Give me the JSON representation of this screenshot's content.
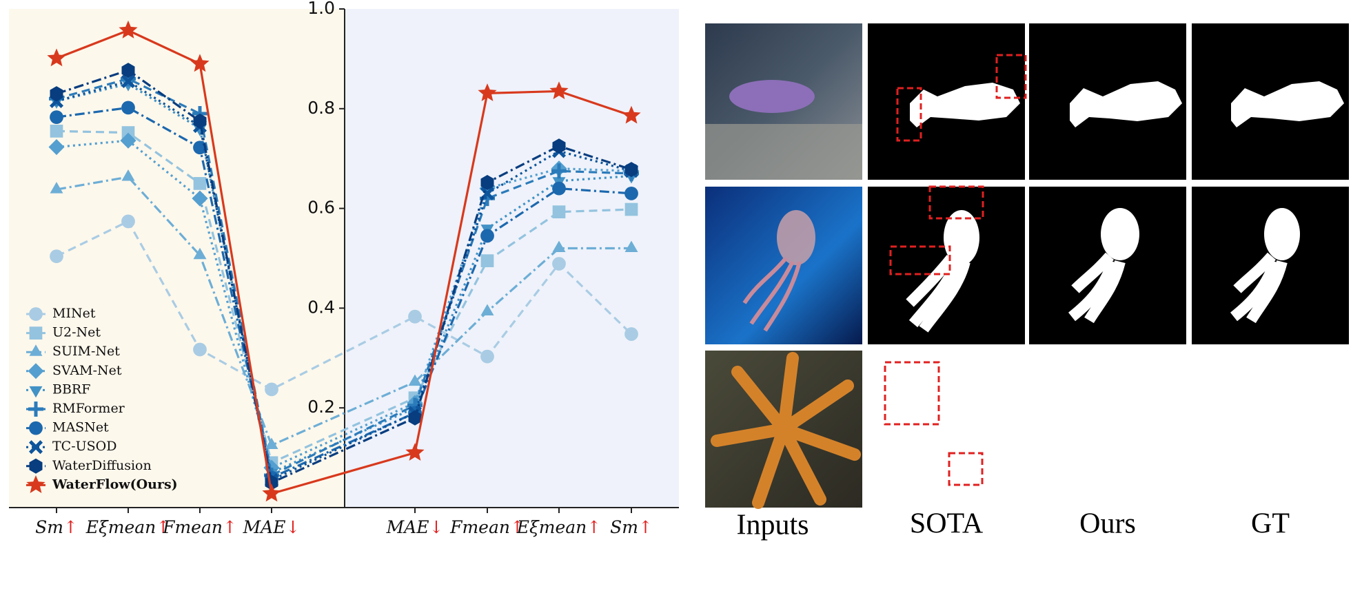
{
  "chart_data": {
    "type": "line",
    "categories": [
      "Sm",
      "Eξmean",
      "Fmean",
      "MAE",
      "MAE",
      "Fmean",
      "Eξmean",
      "Sm"
    ],
    "arrows": [
      "↑",
      "↑",
      "↑",
      "↓",
      "↓",
      "↑",
      "↑",
      "↑"
    ],
    "ylim": [
      0,
      1
    ],
    "yticks": [
      0.2,
      0.4,
      0.6,
      0.8,
      {
        "value": 1.0,
        "label": "1.0"
      }
    ],
    "series": [
      {
        "name": "MINet",
        "color": "#a9cce4",
        "dash": "dashed",
        "marker": "circle",
        "values": [
          0.504,
          0.574,
          0.317,
          0.237,
          0.383,
          0.303,
          0.489,
          0.348
        ]
      },
      {
        "name": "U2-Net",
        "color": "#93c3df",
        "dash": "dashed",
        "marker": "square",
        "values": [
          0.755,
          0.752,
          0.65,
          0.09,
          0.22,
          0.495,
          0.593,
          0.598
        ]
      },
      {
        "name": "SUIM-Net",
        "color": "#6daed6",
        "dash": "dashdot",
        "marker": "triangle",
        "values": [
          0.638,
          0.663,
          0.506,
          0.125,
          0.252,
          0.393,
          0.52,
          0.52
        ]
      },
      {
        "name": "SVAM-Net",
        "color": "#549fd0",
        "dash": "dotted",
        "marker": "diamond",
        "values": [
          0.723,
          0.736,
          0.62,
          0.08,
          0.21,
          0.64,
          0.68,
          0.675
        ]
      },
      {
        "name": "BBRF",
        "color": "#4292c6",
        "dash": "dotted",
        "marker": "triangle-down",
        "values": [
          0.815,
          0.85,
          0.76,
          0.07,
          0.2,
          0.56,
          0.655,
          0.665
        ]
      },
      {
        "name": "RMFormer",
        "color": "#2b7bba",
        "dash": "dashed",
        "marker": "plus",
        "values": [
          0.82,
          0.86,
          0.79,
          0.065,
          0.205,
          0.62,
          0.675,
          0.67
        ]
      },
      {
        "name": "MASNet",
        "color": "#1c68ae",
        "dash": "dashdot",
        "marker": "circle",
        "values": [
          0.783,
          0.802,
          0.722,
          0.06,
          0.19,
          0.545,
          0.64,
          0.63
        ]
      },
      {
        "name": "TC-USOD",
        "color": "#0e559c",
        "dash": "dotted",
        "marker": "x",
        "values": [
          0.815,
          0.855,
          0.765,
          0.055,
          0.19,
          0.63,
          0.715,
          0.675
        ]
      },
      {
        "name": "WaterDiffusion",
        "color": "#083d7f",
        "dash": "dashdot",
        "marker": "hexagon",
        "values": [
          0.83,
          0.877,
          0.775,
          0.05,
          0.18,
          0.652,
          0.725,
          0.678
        ]
      },
      {
        "name": "WaterFlow(Ours)",
        "color": "#d8391d",
        "dash": "solid",
        "marker": "star",
        "values": [
          0.901,
          0.957,
          0.89,
          0.028,
          0.11,
          0.831,
          0.835,
          0.786
        ]
      }
    ]
  },
  "image_grid": {
    "columns": [
      "Inputs",
      "SOTA",
      "Ours",
      "GT"
    ]
  }
}
